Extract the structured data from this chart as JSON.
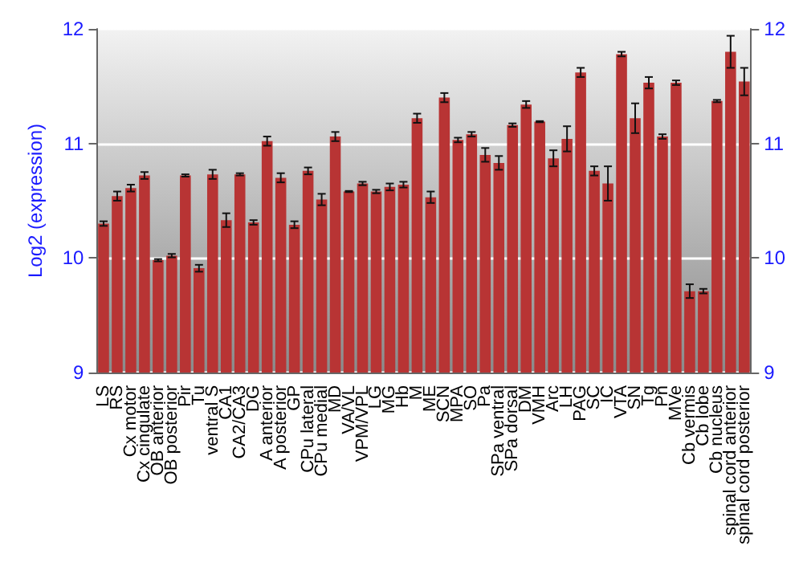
{
  "chart_data": {
    "type": "bar",
    "ylabel": "Log2 (expression)",
    "categories": [
      "LS",
      "RS",
      "Cx motor",
      "Cx cingulate",
      "OB anterior",
      "OB posterior",
      "Pir",
      "Tu",
      "ventral S",
      "CA1",
      "CA2/CA3",
      "DG",
      "A anterior",
      "A posterior",
      "GP",
      "CPu lateral",
      "CPu medial",
      "MD",
      "VA/VL",
      "VPM/VPL",
      "LG",
      "MG",
      "Hb",
      "M",
      "ME",
      "SCN",
      "MPA",
      "SO",
      "Pa",
      "SPa ventral",
      "SPa dorsal",
      "DM",
      "VMH",
      "Arc",
      "LH",
      "PAG",
      "SC",
      "IC",
      "VTA",
      "SN",
      "Tg",
      "Pn",
      "MVe",
      "Cb vermis",
      "Cb lobe",
      "Cb nucleus",
      "spinal cord anterior",
      "spinal cord posterior"
    ],
    "values": [
      10.3,
      10.54,
      10.61,
      10.72,
      9.98,
      10.02,
      10.72,
      9.91,
      10.73,
      10.33,
      10.73,
      10.31,
      11.02,
      10.7,
      10.29,
      10.76,
      10.51,
      11.06,
      10.58,
      10.65,
      10.58,
      10.62,
      10.64,
      11.22,
      10.53,
      11.4,
      11.03,
      11.08,
      10.9,
      10.83,
      11.16,
      11.34,
      11.19,
      10.87,
      11.04,
      11.62,
      10.76,
      10.65,
      11.78,
      11.22,
      11.53,
      11.06,
      11.53,
      9.71,
      9.71,
      11.37,
      11.8,
      11.54
    ],
    "errors": [
      0.02,
      0.04,
      0.03,
      0.03,
      0.01,
      0.015,
      0.01,
      0.03,
      0.04,
      0.06,
      0.01,
      0.02,
      0.04,
      0.04,
      0.03,
      0.03,
      0.05,
      0.04,
      0.005,
      0.015,
      0.015,
      0.03,
      0.025,
      0.04,
      0.05,
      0.04,
      0.02,
      0.02,
      0.06,
      0.06,
      0.015,
      0.03,
      0.005,
      0.07,
      0.11,
      0.04,
      0.04,
      0.15,
      0.02,
      0.13,
      0.05,
      0.02,
      0.02,
      0.06,
      0.02,
      0.01,
      0.14,
      0.12
    ],
    "color": "#b83434",
    "ylim": [
      9,
      12
    ],
    "yticks": [
      9,
      10,
      11,
      12
    ],
    "y2lim": [
      9,
      12
    ],
    "y2ticks": [
      9,
      10,
      11,
      12
    ],
    "grid": "y"
  }
}
